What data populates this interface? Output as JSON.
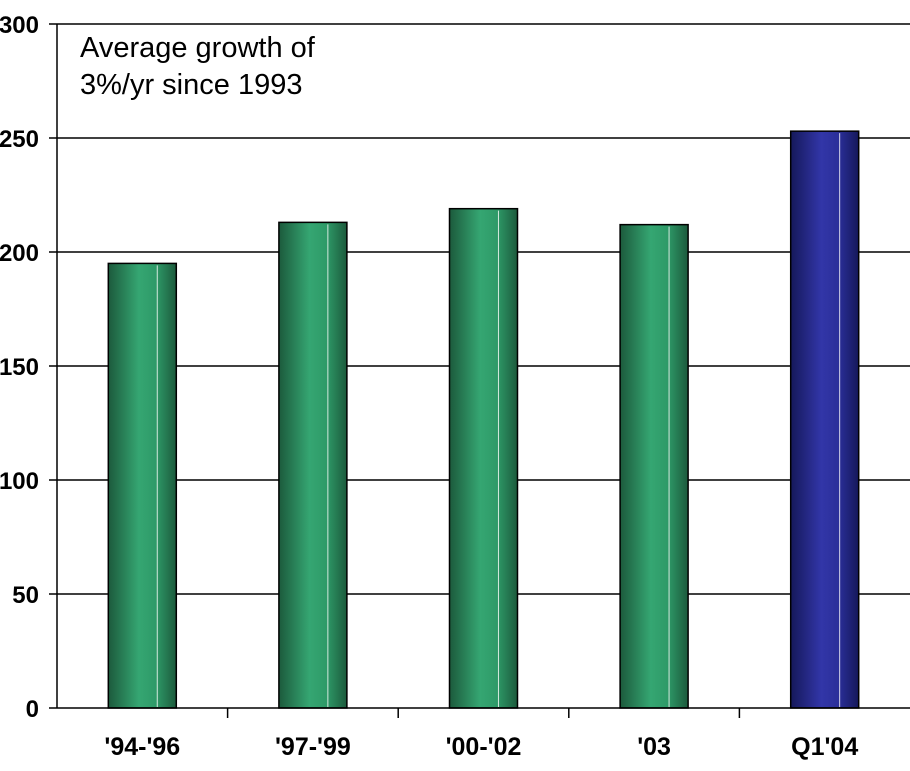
{
  "chart_data": {
    "type": "bar",
    "title": "",
    "xlabel": "",
    "ylabel": "",
    "categories": [
      "'94-'96",
      "'97-'99",
      "'00-'02",
      "'03",
      "Q1'04"
    ],
    "values": [
      195,
      213,
      219,
      212,
      253
    ],
    "ylim": [
      0,
      300
    ],
    "yticks": [
      "0",
      "50",
      "100",
      "150",
      "200",
      "250",
      "300"
    ],
    "grid": true,
    "annotation": [
      "Average growth of",
      "3%/yr since 1993"
    ],
    "colors": {
      "bar_green": "#2e9a68",
      "bar_green_dark": "#1c5a3c",
      "bar_blue": "#2b2f9a",
      "bar_blue_dark": "#15185a"
    },
    "highlight_index": 4
  }
}
